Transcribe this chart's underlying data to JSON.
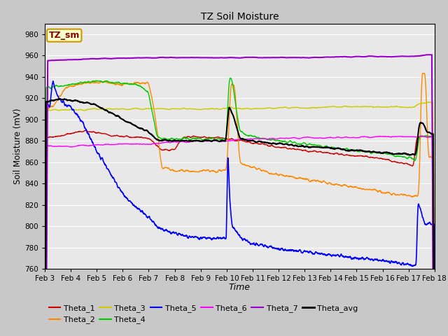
{
  "title": "TZ Soil Moisture",
  "xlabel": "Time",
  "ylabel": "Soil Moisture (mV)",
  "ylim": [
    760,
    990
  ],
  "yticks": [
    760,
    780,
    800,
    820,
    840,
    860,
    880,
    900,
    920,
    940,
    960,
    980
  ],
  "date_labels": [
    "Feb 3",
    "Feb 4",
    "Feb 5",
    "Feb 6",
    "Feb 7",
    "Feb 8",
    "Feb 9",
    "Feb 10",
    "Feb 11",
    "Feb 12",
    "Feb 13",
    "Feb 14",
    "Feb 15",
    "Feb 16",
    "Feb 17",
    "Feb 18"
  ],
  "colors": {
    "Theta_1": "#cc0000",
    "Theta_2": "#ff8800",
    "Theta_3": "#cccc00",
    "Theta_4": "#00cc00",
    "Theta_5": "#0000ff",
    "Theta_6": "#ff00ff",
    "Theta_7": "#9900cc",
    "Theta_avg": "#000000"
  },
  "bg_color": "#e8e8e8",
  "grid_color": "#ffffff",
  "annotation_text": "TZ_sm",
  "annotation_bg": "#ffffcc",
  "annotation_border": "#cc9900",
  "fig_bg": "#c8c8c8"
}
